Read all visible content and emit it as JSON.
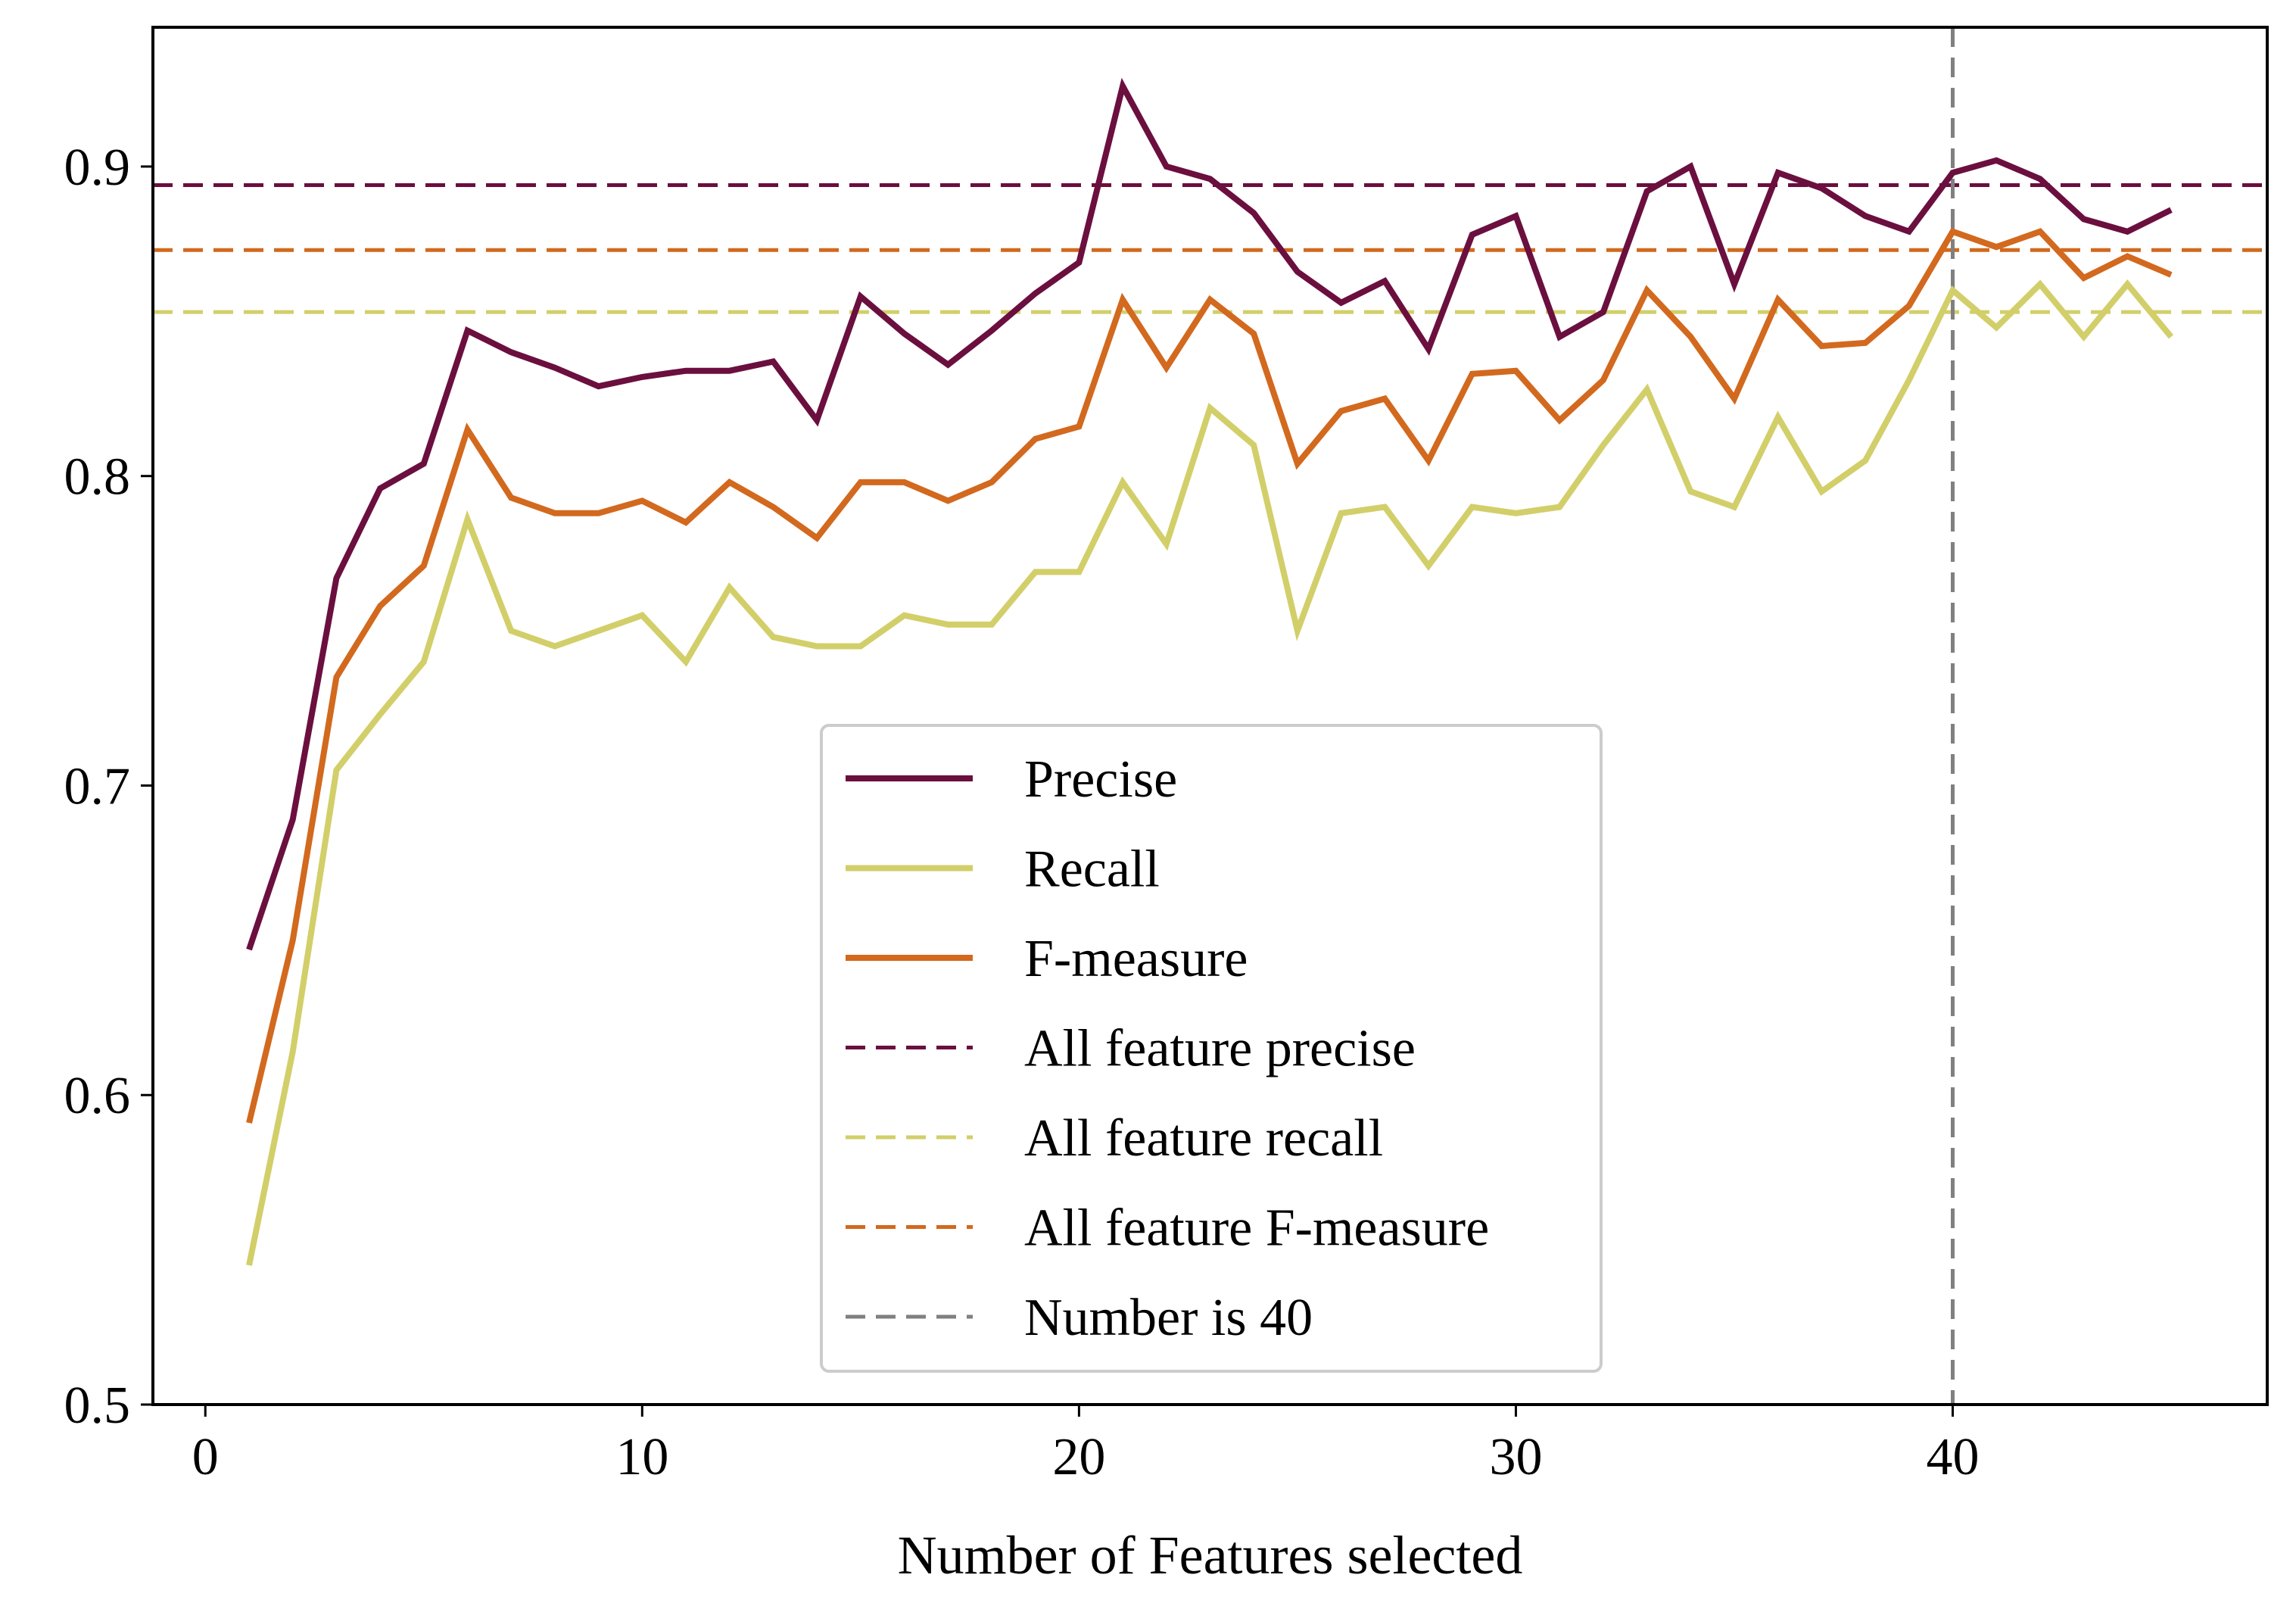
{
  "chart_data": {
    "type": "line",
    "title": "",
    "xlabel": "Number of Features selected",
    "ylabel": "",
    "xlim": [
      -1.2,
      47.2
    ],
    "ylim": [
      0.5,
      0.945
    ],
    "xticks": [
      0,
      10,
      20,
      30,
      40
    ],
    "yticks": [
      0.5,
      0.6,
      0.7,
      0.8,
      0.9
    ],
    "xtick_labels": [
      "0",
      "10",
      "20",
      "30",
      "40"
    ],
    "ytick_labels": [
      "0.5",
      "0.6",
      "0.7",
      "0.8",
      "0.9"
    ],
    "grid": false,
    "legend_position": "lower-center",
    "x": [
      1,
      2,
      3,
      4,
      5,
      6,
      7,
      8,
      9,
      10,
      11,
      12,
      13,
      14,
      15,
      16,
      17,
      18,
      19,
      20,
      21,
      22,
      23,
      24,
      25,
      26,
      27,
      28,
      29,
      30,
      31,
      32,
      33,
      34,
      35,
      36,
      37,
      38,
      39,
      40,
      41,
      42,
      43,
      44,
      45
    ],
    "series": [
      {
        "name": "Precise",
        "color": "#6b0f3f",
        "style": "solid",
        "values": [
          0.647,
          0.689,
          0.767,
          0.796,
          0.804,
          0.847,
          0.84,
          0.835,
          0.829,
          0.832,
          0.834,
          0.834,
          0.837,
          0.818,
          0.858,
          0.846,
          0.836,
          0.847,
          0.859,
          0.869,
          0.926,
          0.9,
          0.896,
          0.885,
          0.866,
          0.856,
          0.863,
          0.841,
          0.878,
          0.884,
          0.845,
          0.853,
          0.892,
          0.9,
          0.862,
          0.898,
          0.893,
          0.884,
          0.879,
          0.898,
          0.902,
          0.896,
          0.883,
          0.879,
          0.886
        ]
      },
      {
        "name": "Recall",
        "color": "#d2cf6a",
        "style": "solid",
        "values": [
          0.545,
          0.614,
          0.705,
          0.723,
          0.74,
          0.786,
          0.75,
          0.745,
          0.75,
          0.755,
          0.74,
          0.764,
          0.748,
          0.745,
          0.745,
          0.755,
          0.752,
          0.752,
          0.769,
          0.769,
          0.798,
          0.778,
          0.822,
          0.81,
          0.75,
          0.788,
          0.79,
          0.771,
          0.79,
          0.788,
          0.79,
          0.81,
          0.828,
          0.795,
          0.79,
          0.819,
          0.795,
          0.805,
          0.831,
          0.86,
          0.848,
          0.862,
          0.845,
          0.862,
          0.845
        ]
      },
      {
        "name": "F-measure",
        "color": "#d2691e",
        "style": "solid",
        "values": [
          0.591,
          0.65,
          0.735,
          0.758,
          0.771,
          0.815,
          0.793,
          0.788,
          0.788,
          0.792,
          0.785,
          0.798,
          0.79,
          0.78,
          0.798,
          0.798,
          0.792,
          0.798,
          0.812,
          0.816,
          0.857,
          0.835,
          0.857,
          0.846,
          0.804,
          0.821,
          0.825,
          0.805,
          0.833,
          0.834,
          0.818,
          0.831,
          0.86,
          0.845,
          0.825,
          0.857,
          0.842,
          0.843,
          0.855,
          0.879,
          0.874,
          0.879,
          0.864,
          0.871,
          0.865
        ]
      }
    ],
    "reference_lines": [
      {
        "name": "All feature precise",
        "orientation": "horizontal",
        "value": 0.894,
        "color": "#6b0f3f",
        "style": "dashed"
      },
      {
        "name": "All feature recall",
        "orientation": "horizontal",
        "value": 0.853,
        "color": "#d2cf6a",
        "style": "dashed"
      },
      {
        "name": "All feature F-measure",
        "orientation": "horizontal",
        "value": 0.873,
        "color": "#d2691e",
        "style": "dashed"
      },
      {
        "name": "Number is 40",
        "orientation": "vertical",
        "value": 40,
        "color": "#808080",
        "style": "dashed"
      }
    ],
    "legend": [
      {
        "label": "Precise",
        "color": "#6b0f3f",
        "style": "solid"
      },
      {
        "label": "Recall",
        "color": "#d2cf6a",
        "style": "solid"
      },
      {
        "label": "F-measure",
        "color": "#d2691e",
        "style": "solid"
      },
      {
        "label": "All feature precise",
        "color": "#6b0f3f",
        "style": "dashed"
      },
      {
        "label": "All feature recall",
        "color": "#d2cf6a",
        "style": "dashed"
      },
      {
        "label": "All feature F-measure",
        "color": "#d2691e",
        "style": "dashed"
      },
      {
        "label": "Number is 40",
        "color": "#808080",
        "style": "dashed"
      }
    ]
  }
}
